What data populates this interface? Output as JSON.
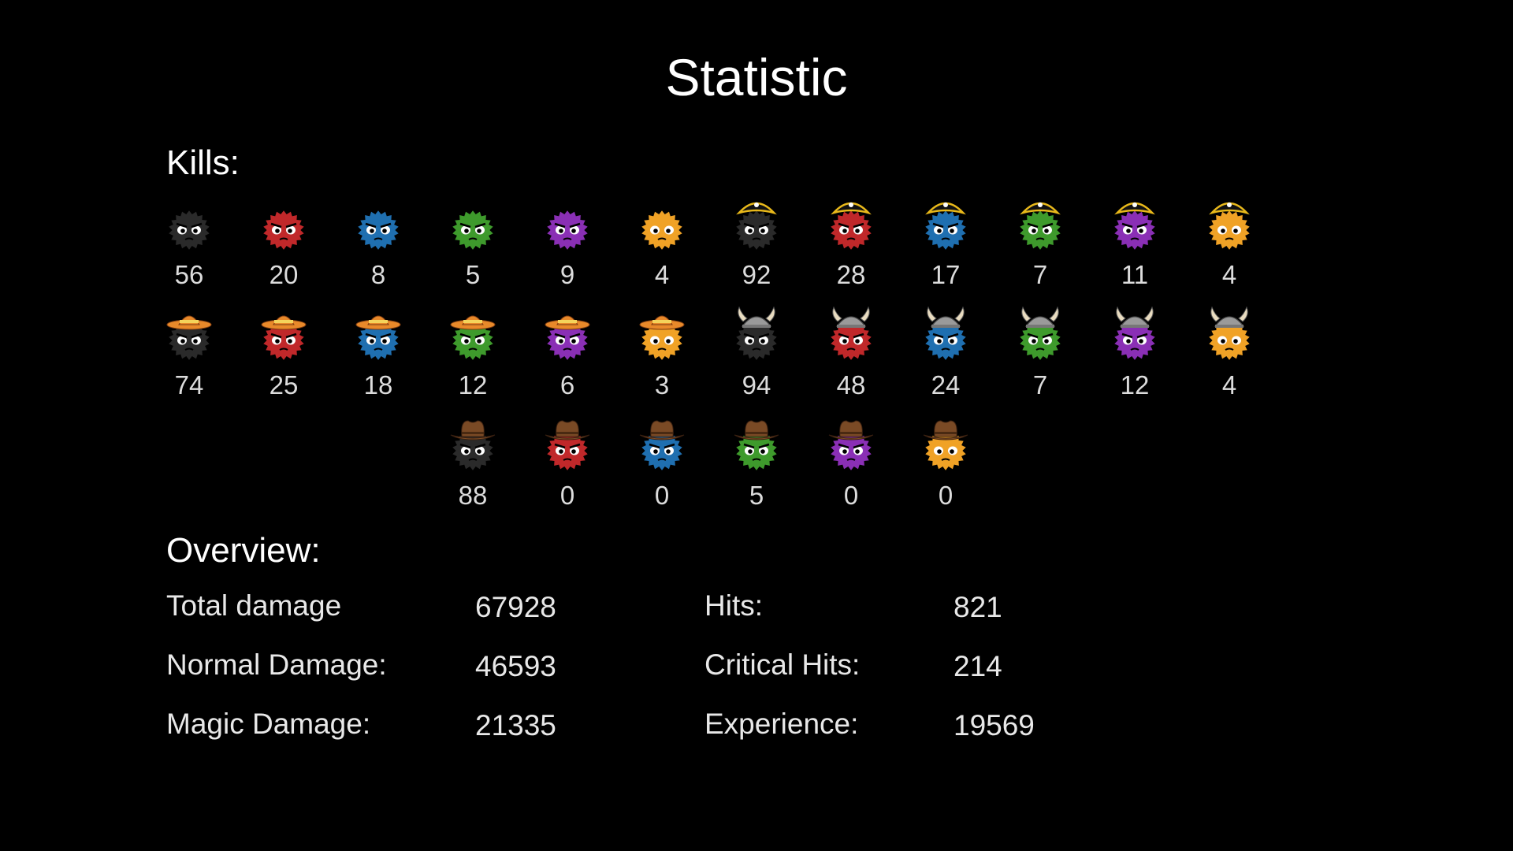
{
  "title": "Statistic",
  "kills_label": "Kills:",
  "overview_label": "Overview:",
  "colors": {
    "black": "#2a2a2a",
    "red": "#c0282a",
    "blue": "#1f6fb0",
    "green": "#3e9a2c",
    "purple": "#8a2fb5",
    "orange": "#f0a226",
    "pirate_hat": "#111111",
    "pirate_band": "#e8b81a",
    "sombrero": "#e8892a",
    "viking_helmet": "#9a9a9a",
    "cowboy_hat": "#7a4a25"
  },
  "kills": {
    "rows": [
      [
        {
          "icon": "black-monster-icon",
          "color": "black",
          "hat": "none",
          "count": "56"
        },
        {
          "icon": "red-monster-icon",
          "color": "red",
          "hat": "none",
          "count": "20"
        },
        {
          "icon": "blue-monster-icon",
          "color": "blue",
          "hat": "none",
          "count": "8"
        },
        {
          "icon": "green-monster-icon",
          "color": "green",
          "hat": "none",
          "count": "5"
        },
        {
          "icon": "purple-monster-icon",
          "color": "purple",
          "hat": "none",
          "count": "9"
        },
        {
          "icon": "orange-monster-icon",
          "color": "orange",
          "hat": "none",
          "count": "4"
        },
        {
          "icon": "black-pirate-monster-icon",
          "color": "black",
          "hat": "pirate",
          "count": "92"
        },
        {
          "icon": "red-pirate-monster-icon",
          "color": "red",
          "hat": "pirate",
          "count": "28"
        },
        {
          "icon": "blue-pirate-monster-icon",
          "color": "blue",
          "hat": "pirate",
          "count": "17"
        },
        {
          "icon": "green-pirate-monster-icon",
          "color": "green",
          "hat": "pirate",
          "count": "7"
        },
        {
          "icon": "purple-pirate-monster-icon",
          "color": "purple",
          "hat": "pirate",
          "count": "11"
        },
        {
          "icon": "orange-pirate-monster-icon",
          "color": "orange",
          "hat": "pirate",
          "count": "4"
        }
      ],
      [
        {
          "icon": "black-sombrero-monster-icon",
          "color": "black",
          "hat": "sombrero",
          "count": "74"
        },
        {
          "icon": "red-sombrero-monster-icon",
          "color": "red",
          "hat": "sombrero",
          "count": "25"
        },
        {
          "icon": "blue-sombrero-monster-icon",
          "color": "blue",
          "hat": "sombrero",
          "count": "18"
        },
        {
          "icon": "green-sombrero-monster-icon",
          "color": "green",
          "hat": "sombrero",
          "count": "12"
        },
        {
          "icon": "purple-sombrero-monster-icon",
          "color": "purple",
          "hat": "sombrero",
          "count": "6"
        },
        {
          "icon": "orange-sombrero-monster-icon",
          "color": "orange",
          "hat": "sombrero",
          "count": "3"
        },
        {
          "icon": "black-viking-monster-icon",
          "color": "black",
          "hat": "viking",
          "count": "94"
        },
        {
          "icon": "red-viking-monster-icon",
          "color": "red",
          "hat": "viking",
          "count": "48"
        },
        {
          "icon": "blue-viking-monster-icon",
          "color": "blue",
          "hat": "viking",
          "count": "24"
        },
        {
          "icon": "green-viking-monster-icon",
          "color": "green",
          "hat": "viking",
          "count": "7"
        },
        {
          "icon": "purple-viking-monster-icon",
          "color": "purple",
          "hat": "viking",
          "count": "12"
        },
        {
          "icon": "orange-viking-monster-icon",
          "color": "orange",
          "hat": "viking",
          "count": "4"
        }
      ],
      [
        {
          "icon": "black-cowboy-monster-icon",
          "color": "black",
          "hat": "cowboy",
          "count": "88"
        },
        {
          "icon": "red-cowboy-monster-icon",
          "color": "red",
          "hat": "cowboy",
          "count": "0"
        },
        {
          "icon": "blue-cowboy-monster-icon",
          "color": "blue",
          "hat": "cowboy",
          "count": "0"
        },
        {
          "icon": "green-cowboy-monster-icon",
          "color": "green",
          "hat": "cowboy",
          "count": "5"
        },
        {
          "icon": "purple-cowboy-monster-icon",
          "color": "purple",
          "hat": "cowboy",
          "count": "0"
        },
        {
          "icon": "orange-cowboy-monster-icon",
          "color": "orange",
          "hat": "cowboy",
          "count": "0"
        }
      ]
    ]
  },
  "overview": {
    "left": [
      {
        "label": "Total damage",
        "value": "67928"
      },
      {
        "label": "Normal Damage:",
        "value": "46593"
      },
      {
        "label": "Magic Damage:",
        "value": "21335"
      }
    ],
    "right": [
      {
        "label": "Hits:",
        "value": "821"
      },
      {
        "label": "Critical Hits:",
        "value": "214"
      },
      {
        "label": "Experience:",
        "value": "19569"
      }
    ]
  }
}
